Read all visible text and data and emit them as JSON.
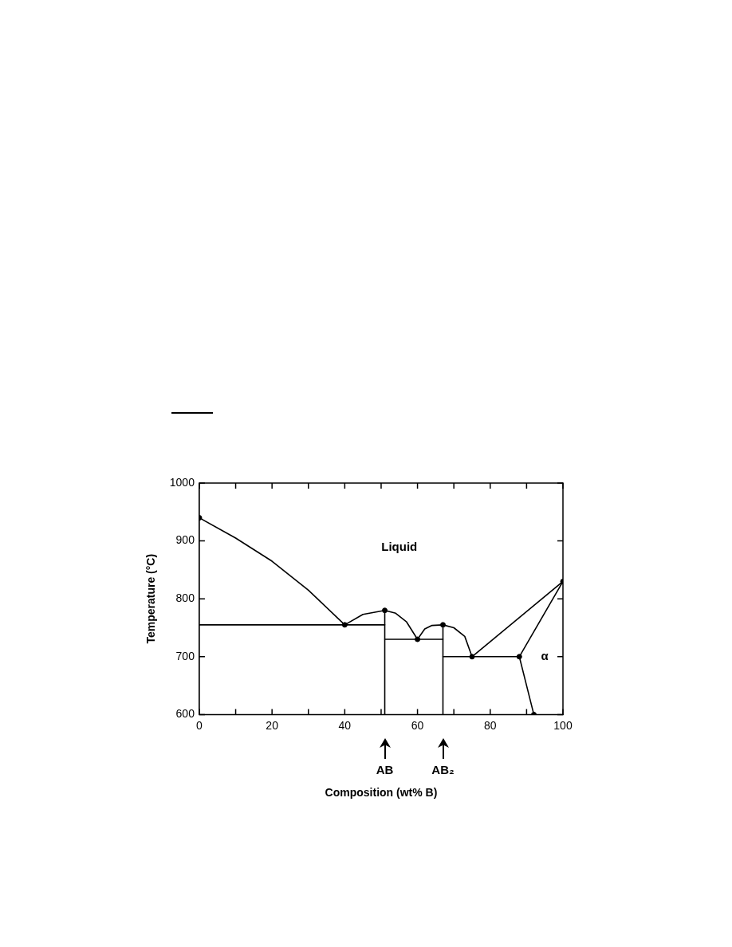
{
  "chart_data": {
    "type": "line",
    "xlabel": "Composition (wt% B)",
    "ylabel": "Temperature (°C)",
    "xlim": [
      0,
      100
    ],
    "ylim": [
      600,
      1000
    ],
    "xticks": [
      0,
      {
        "value": 10,
        "label": null
      },
      20,
      {
        "value": 30,
        "label": null
      },
      40,
      {
        "value": 50,
        "label": null
      },
      60,
      {
        "value": 70,
        "label": null
      },
      80,
      {
        "value": 90,
        "label": null
      },
      100
    ],
    "yticks": [
      600,
      700,
      800,
      900,
      1000
    ],
    "grid": false,
    "legend": false,
    "marker": "none",
    "line_style": "solid",
    "series": [
      {
        "color": "#000000",
        "x": [
          0,
          10,
          20,
          30,
          40,
          45,
          51,
          54,
          57,
          60,
          62,
          64,
          67,
          70,
          73,
          75,
          100
        ],
        "values": [
          940,
          905,
          865,
          815,
          755,
          773,
          780,
          775,
          760,
          730,
          748,
          754,
          755,
          750,
          735,
          700,
          830
        ]
      },
      {
        "color": "#000000",
        "x": [
          100,
          88,
          92
        ],
        "values": [
          830,
          700,
          600
        ]
      },
      {
        "color": "#000000",
        "x": [
          0,
          51
        ],
        "values": [
          755,
          755
        ]
      },
      {
        "color": "#000000",
        "x": [
          51,
          67
        ],
        "values": [
          730,
          730
        ]
      },
      {
        "color": "#000000",
        "x": [
          67,
          88
        ],
        "values": [
          700,
          700
        ]
      },
      {
        "color": "#000000",
        "x": [
          51,
          51
        ],
        "values": [
          780,
          600
        ]
      },
      {
        "color": "#000000",
        "x": [
          67,
          67
        ],
        "values": [
          755,
          600
        ]
      },
      {
        "type": "scatter",
        "marker": "circle",
        "color": "#000000",
        "x": [
          0,
          40,
          51,
          60,
          67,
          75,
          88,
          92,
          100
        ],
        "values": [
          940,
          755,
          780,
          730,
          755,
          700,
          700,
          600,
          830
        ]
      }
    ],
    "annotations": [
      "Liquid",
      "α",
      "AB",
      "AB₂"
    ]
  }
}
